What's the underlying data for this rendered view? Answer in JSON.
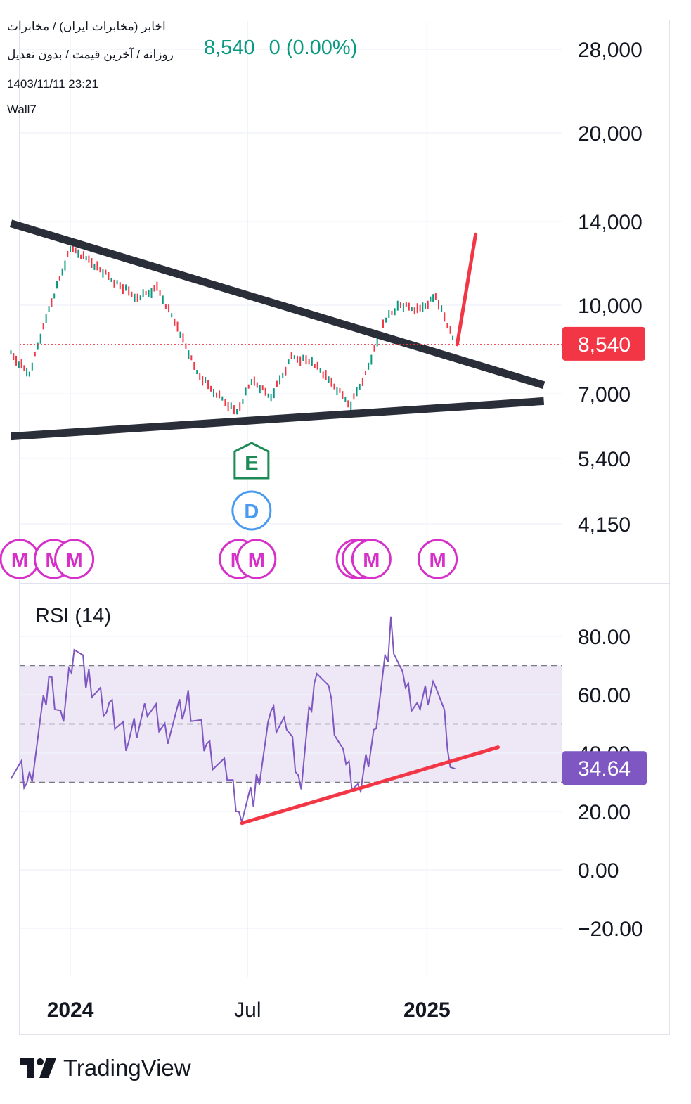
{
  "header": {
    "symbol_path": "اخابر (مخابرات ایران) / مخابرات",
    "subtitle": "روزانه / آخرین قیمت / بدون تعدیل",
    "datetime": "1403/11/11 23:21",
    "author": "Wall7",
    "price": "8,540",
    "change": "0 (0.00%)"
  },
  "colors": {
    "up": "#089981",
    "down": "#f23645",
    "rsi_line": "#7e57c2",
    "rsi_band": "#ede7f6",
    "trendline": "#2a2e39",
    "annotation": "#f23645",
    "marker_m": "#d630c8",
    "marker_e": "#1b8a55",
    "marker_d": "#4a9af0"
  },
  "chart_data": [
    {
      "type": "line",
      "description_series": "Daily price (candles)",
      "y_scale": "log",
      "y_ticks": [
        "28,000",
        "20,000",
        "14,000",
        "10,000",
        "7,000",
        "5,400",
        "4,150"
      ],
      "y_tick_values": [
        28000,
        20000,
        14000,
        10000,
        7000,
        5400,
        4150
      ],
      "x_ticks": [
        "2024",
        "Jul",
        "2025"
      ],
      "last_price_label": "8,540",
      "last_price": 8540,
      "series": [
        {
          "x": [
            "2023-11",
            "2023-11-20",
            "2023-12-10",
            "2024-01-01",
            "2024-01-20",
            "2024-02-15",
            "2024-03-10",
            "2024-03-30",
            "2024-04-20",
            "2024-05-10",
            "2024-05-30",
            "2024-06-20",
            "2024-07-05",
            "2024-07-25",
            "2024-08-15",
            "2024-09-05",
            "2024-09-25",
            "2024-10-15",
            "2024-10-30",
            "2024-11-20",
            "2024-12-05",
            "2024-12-25",
            "2025-01-10",
            "2025-01-25",
            "2025-01-30"
          ],
          "values": [
            8200,
            7600,
            9800,
            12600,
            12000,
            11000,
            10300,
            10700,
            9200,
            7600,
            7000,
            6500,
            7400,
            6900,
            8100,
            8000,
            7300,
            6700,
            7600,
            9500,
            10000,
            9800,
            10400,
            9000,
            8540
          ]
        }
      ],
      "trendlines": [
        {
          "name": "descending",
          "from": [
            "2023-11",
            13900
          ],
          "to": [
            "2025-05",
            7250
          ]
        },
        {
          "name": "ascending",
          "from": [
            "2023-11",
            5900
          ],
          "to": [
            "2025-05",
            6800
          ]
        }
      ],
      "projection_arrow": {
        "from": [
          "2025-02-01",
          8540
        ],
        "to": [
          "2025-02-20",
          13300
        ]
      },
      "event_markers": [
        "M",
        "M",
        "M",
        "M",
        "M",
        "M",
        "M",
        "M",
        "M",
        "E",
        "D"
      ]
    },
    {
      "type": "line",
      "title": "RSI (14)",
      "y_ticks": [
        "80.00",
        "60.00",
        "40.00",
        "20.00",
        "0.00",
        "−20.00"
      ],
      "y_tick_values": [
        80,
        60,
        40,
        20,
        0,
        -20
      ],
      "band": [
        30,
        70
      ],
      "midline": 50,
      "last_value_label": "34.64",
      "last_value": 34.64,
      "x": [
        "2023-11",
        "2023-11-20",
        "2023-12-10",
        "2023-12-25",
        "2024-01-05",
        "2024-01-20",
        "2024-02-10",
        "2024-03-01",
        "2024-03-20",
        "2024-04-10",
        "2024-05-01",
        "2024-05-20",
        "2024-06-10",
        "2024-06-25",
        "2024-07-10",
        "2024-07-25",
        "2024-08-10",
        "2024-08-25",
        "2024-09-10",
        "2024-09-25",
        "2024-10-10",
        "2024-10-25",
        "2024-11-10",
        "2024-11-25",
        "2024-12-10",
        "2024-12-25",
        "2025-01-10",
        "2025-01-25",
        "2025-01-30"
      ],
      "values": [
        36,
        30,
        65,
        52,
        79,
        64,
        55,
        44,
        55,
        48,
        58,
        42,
        32,
        20,
        28,
        52,
        48,
        30,
        72,
        55,
        35,
        28,
        52,
        82,
        60,
        55,
        65,
        40,
        34.64
      ],
      "support_line": {
        "from": [
          "2024-06-25",
          16
        ],
        "to": [
          "2025-03-15",
          42
        ]
      }
    }
  ],
  "x_axis": {
    "labels": [
      "2024",
      "Jul",
      "2025"
    ]
  },
  "branding": {
    "logo_text": "TradingView"
  }
}
